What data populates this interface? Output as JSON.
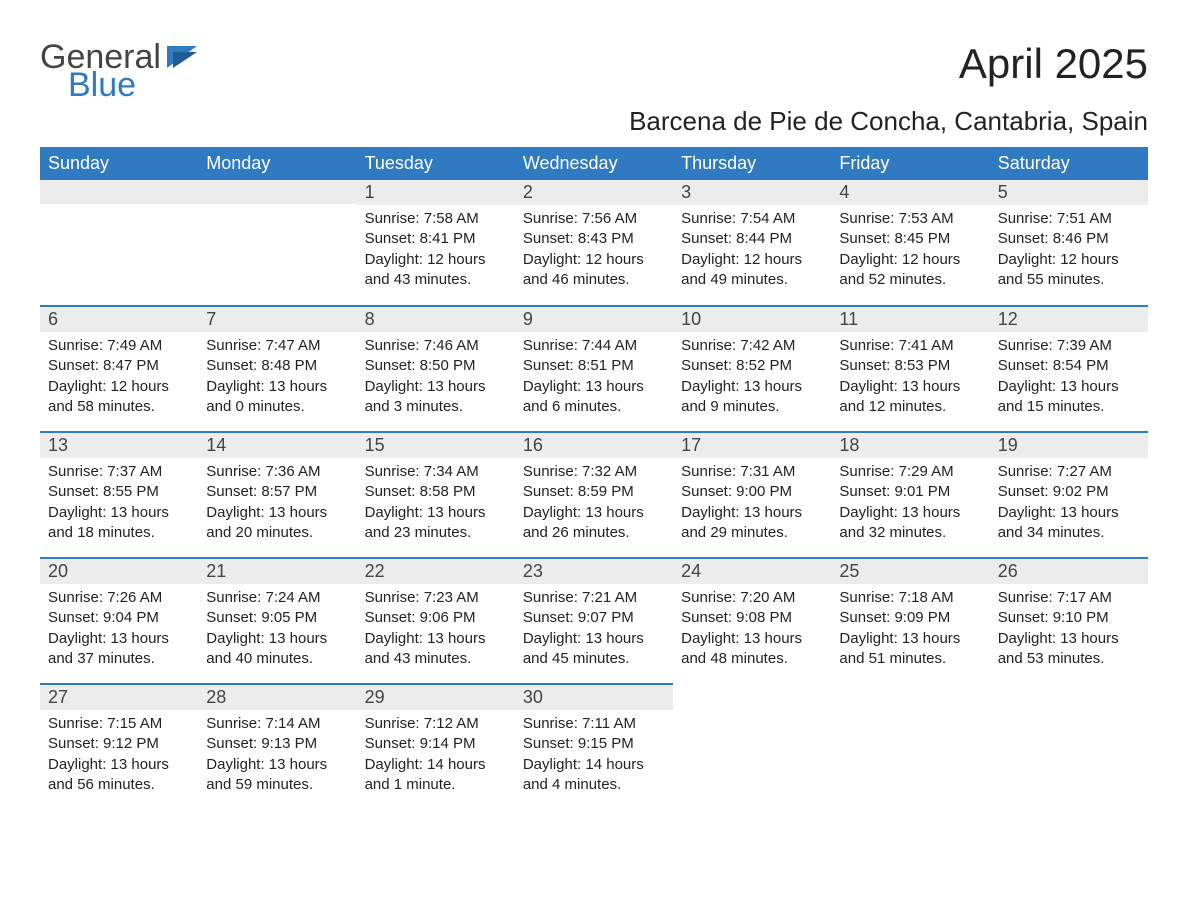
{
  "logo": {
    "text1": "General",
    "text2": "Blue",
    "accent_color": "#2f7ac0"
  },
  "title": "April 2025",
  "subtitle": "Barcena de Pie de Concha, Cantabria, Spain",
  "colors": {
    "header_bg": "#2f7ac0",
    "header_text": "#ffffff",
    "daynum_bg": "#ececec",
    "border": "#2f7ac0",
    "body_text": "#222222",
    "page_bg": "#ffffff"
  },
  "weekdays": [
    "Sunday",
    "Monday",
    "Tuesday",
    "Wednesday",
    "Thursday",
    "Friday",
    "Saturday"
  ],
  "weeks": [
    [
      {
        "day": "",
        "sunrise": "",
        "sunset": "",
        "daylight": ""
      },
      {
        "day": "",
        "sunrise": "",
        "sunset": "",
        "daylight": ""
      },
      {
        "day": "1",
        "sunrise": "Sunrise: 7:58 AM",
        "sunset": "Sunset: 8:41 PM",
        "daylight": "Daylight: 12 hours and 43 minutes."
      },
      {
        "day": "2",
        "sunrise": "Sunrise: 7:56 AM",
        "sunset": "Sunset: 8:43 PM",
        "daylight": "Daylight: 12 hours and 46 minutes."
      },
      {
        "day": "3",
        "sunrise": "Sunrise: 7:54 AM",
        "sunset": "Sunset: 8:44 PM",
        "daylight": "Daylight: 12 hours and 49 minutes."
      },
      {
        "day": "4",
        "sunrise": "Sunrise: 7:53 AM",
        "sunset": "Sunset: 8:45 PM",
        "daylight": "Daylight: 12 hours and 52 minutes."
      },
      {
        "day": "5",
        "sunrise": "Sunrise: 7:51 AM",
        "sunset": "Sunset: 8:46 PM",
        "daylight": "Daylight: 12 hours and 55 minutes."
      }
    ],
    [
      {
        "day": "6",
        "sunrise": "Sunrise: 7:49 AM",
        "sunset": "Sunset: 8:47 PM",
        "daylight": "Daylight: 12 hours and 58 minutes."
      },
      {
        "day": "7",
        "sunrise": "Sunrise: 7:47 AM",
        "sunset": "Sunset: 8:48 PM",
        "daylight": "Daylight: 13 hours and 0 minutes."
      },
      {
        "day": "8",
        "sunrise": "Sunrise: 7:46 AM",
        "sunset": "Sunset: 8:50 PM",
        "daylight": "Daylight: 13 hours and 3 minutes."
      },
      {
        "day": "9",
        "sunrise": "Sunrise: 7:44 AM",
        "sunset": "Sunset: 8:51 PM",
        "daylight": "Daylight: 13 hours and 6 minutes."
      },
      {
        "day": "10",
        "sunrise": "Sunrise: 7:42 AM",
        "sunset": "Sunset: 8:52 PM",
        "daylight": "Daylight: 13 hours and 9 minutes."
      },
      {
        "day": "11",
        "sunrise": "Sunrise: 7:41 AM",
        "sunset": "Sunset: 8:53 PM",
        "daylight": "Daylight: 13 hours and 12 minutes."
      },
      {
        "day": "12",
        "sunrise": "Sunrise: 7:39 AM",
        "sunset": "Sunset: 8:54 PM",
        "daylight": "Daylight: 13 hours and 15 minutes."
      }
    ],
    [
      {
        "day": "13",
        "sunrise": "Sunrise: 7:37 AM",
        "sunset": "Sunset: 8:55 PM",
        "daylight": "Daylight: 13 hours and 18 minutes."
      },
      {
        "day": "14",
        "sunrise": "Sunrise: 7:36 AM",
        "sunset": "Sunset: 8:57 PM",
        "daylight": "Daylight: 13 hours and 20 minutes."
      },
      {
        "day": "15",
        "sunrise": "Sunrise: 7:34 AM",
        "sunset": "Sunset: 8:58 PM",
        "daylight": "Daylight: 13 hours and 23 minutes."
      },
      {
        "day": "16",
        "sunrise": "Sunrise: 7:32 AM",
        "sunset": "Sunset: 8:59 PM",
        "daylight": "Daylight: 13 hours and 26 minutes."
      },
      {
        "day": "17",
        "sunrise": "Sunrise: 7:31 AM",
        "sunset": "Sunset: 9:00 PM",
        "daylight": "Daylight: 13 hours and 29 minutes."
      },
      {
        "day": "18",
        "sunrise": "Sunrise: 7:29 AM",
        "sunset": "Sunset: 9:01 PM",
        "daylight": "Daylight: 13 hours and 32 minutes."
      },
      {
        "day": "19",
        "sunrise": "Sunrise: 7:27 AM",
        "sunset": "Sunset: 9:02 PM",
        "daylight": "Daylight: 13 hours and 34 minutes."
      }
    ],
    [
      {
        "day": "20",
        "sunrise": "Sunrise: 7:26 AM",
        "sunset": "Sunset: 9:04 PM",
        "daylight": "Daylight: 13 hours and 37 minutes."
      },
      {
        "day": "21",
        "sunrise": "Sunrise: 7:24 AM",
        "sunset": "Sunset: 9:05 PM",
        "daylight": "Daylight: 13 hours and 40 minutes."
      },
      {
        "day": "22",
        "sunrise": "Sunrise: 7:23 AM",
        "sunset": "Sunset: 9:06 PM",
        "daylight": "Daylight: 13 hours and 43 minutes."
      },
      {
        "day": "23",
        "sunrise": "Sunrise: 7:21 AM",
        "sunset": "Sunset: 9:07 PM",
        "daylight": "Daylight: 13 hours and 45 minutes."
      },
      {
        "day": "24",
        "sunrise": "Sunrise: 7:20 AM",
        "sunset": "Sunset: 9:08 PM",
        "daylight": "Daylight: 13 hours and 48 minutes."
      },
      {
        "day": "25",
        "sunrise": "Sunrise: 7:18 AM",
        "sunset": "Sunset: 9:09 PM",
        "daylight": "Daylight: 13 hours and 51 minutes."
      },
      {
        "day": "26",
        "sunrise": "Sunrise: 7:17 AM",
        "sunset": "Sunset: 9:10 PM",
        "daylight": "Daylight: 13 hours and 53 minutes."
      }
    ],
    [
      {
        "day": "27",
        "sunrise": "Sunrise: 7:15 AM",
        "sunset": "Sunset: 9:12 PM",
        "daylight": "Daylight: 13 hours and 56 minutes."
      },
      {
        "day": "28",
        "sunrise": "Sunrise: 7:14 AM",
        "sunset": "Sunset: 9:13 PM",
        "daylight": "Daylight: 13 hours and 59 minutes."
      },
      {
        "day": "29",
        "sunrise": "Sunrise: 7:12 AM",
        "sunset": "Sunset: 9:14 PM",
        "daylight": "Daylight: 14 hours and 1 minute."
      },
      {
        "day": "30",
        "sunrise": "Sunrise: 7:11 AM",
        "sunset": "Sunset: 9:15 PM",
        "daylight": "Daylight: 14 hours and 4 minutes."
      },
      {
        "day": "",
        "sunrise": "",
        "sunset": "",
        "daylight": ""
      },
      {
        "day": "",
        "sunrise": "",
        "sunset": "",
        "daylight": ""
      },
      {
        "day": "",
        "sunrise": "",
        "sunset": "",
        "daylight": ""
      }
    ]
  ]
}
